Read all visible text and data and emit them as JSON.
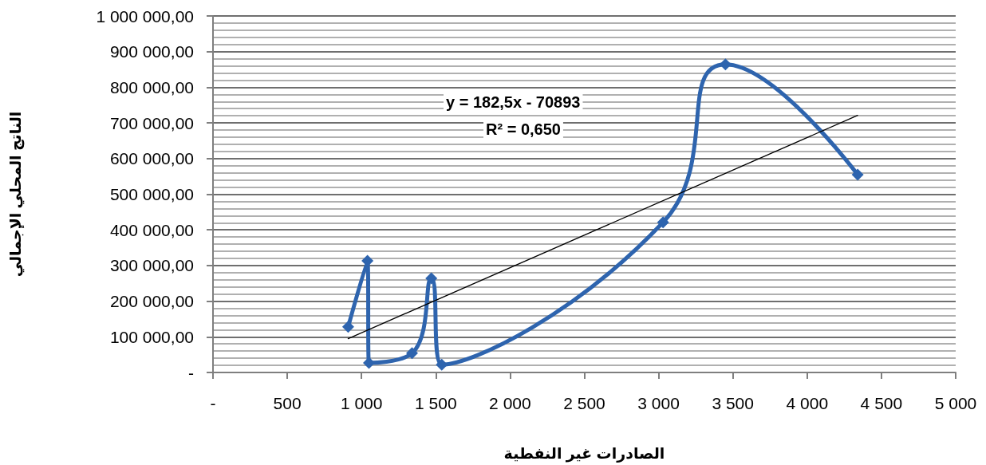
{
  "chart_data": {
    "type": "line",
    "xlabel": "الصادرات غير النفطية",
    "ylabel": "الناتج المحلي الإجمالي",
    "x": [
      910,
      1040,
      1050,
      1340,
      1470,
      1540,
      3030,
      3450,
      4340
    ],
    "series": [
      {
        "color": "#2e64ae",
        "marker": "diamond",
        "line_style": "solid",
        "values": [
          128000,
          313000,
          27000,
          54000,
          264000,
          22000,
          421000,
          864000,
          555000
        ]
      },
      {
        "color": "#000000",
        "marker": "none",
        "line_style": "solid",
        "x": [
          910,
          4340
        ],
        "values": [
          95000,
          721000
        ]
      }
    ],
    "xlim": [
      0,
      5000
    ],
    "xticks": [
      {
        "value": 0,
        "label": "-"
      },
      500,
      {
        "value": 1000,
        "label": "1 000"
      },
      {
        "value": 1500,
        "label": "1 500"
      },
      {
        "value": 2000,
        "label": "2 000"
      },
      {
        "value": 2500,
        "label": "2 500"
      },
      {
        "value": 3000,
        "label": "3 000"
      },
      {
        "value": 3500,
        "label": "3 500"
      },
      {
        "value": 4000,
        "label": "4 000"
      },
      {
        "value": 4500,
        "label": "4 500"
      },
      {
        "value": 5000,
        "label": "5 000"
      }
    ],
    "ylim": [
      0,
      1000000
    ],
    "yticks": [
      {
        "value": 0,
        "label": "-"
      },
      {
        "value": 100000,
        "label": "100 000,00"
      },
      {
        "value": 200000,
        "label": "200 000,00"
      },
      {
        "value": 300000,
        "label": "300 000,00"
      },
      {
        "value": 400000,
        "label": "400 000,00"
      },
      {
        "value": 500000,
        "label": "500 000,00"
      },
      {
        "value": 600000,
        "label": "600 000,00"
      },
      {
        "value": 700000,
        "label": "700 000,00"
      },
      {
        "value": 800000,
        "label": "800 000,00"
      },
      {
        "value": 900000,
        "label": "900 000,00"
      },
      {
        "value": 1000000,
        "label": "1 000 000,00"
      }
    ],
    "grid": "y",
    "annotations": [
      "y = 182,5x - 70893",
      "R² = 0,650"
    ]
  }
}
